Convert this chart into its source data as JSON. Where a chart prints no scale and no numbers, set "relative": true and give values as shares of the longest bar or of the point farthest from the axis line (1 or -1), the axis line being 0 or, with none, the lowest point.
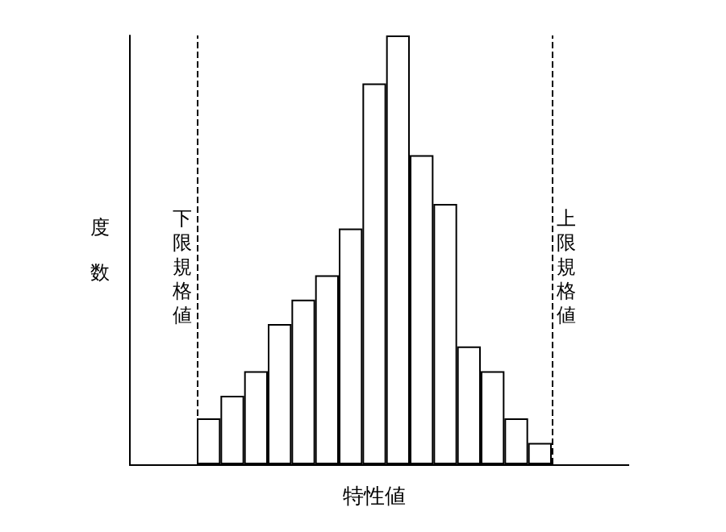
{
  "chart_data": {
    "type": "bar",
    "xlabel": "特性値",
    "ylabel": "度数",
    "relative": true,
    "color": "#ffffff",
    "grid": false,
    "categories": [
      null,
      null,
      null,
      null,
      null,
      null,
      null,
      null,
      null,
      null,
      null,
      null,
      null,
      null,
      null
    ],
    "values": [
      0.107,
      0.16,
      0.217,
      0.327,
      0.384,
      0.441,
      0.55,
      0.888,
      1,
      0.721,
      0.607,
      0.275,
      0.217,
      0.107,
      0.05
    ],
    "ref_lines": [
      {
        "axis": "x",
        "label": "下限規格値",
        "line_style": "dashed"
      },
      {
        "axis": "x",
        "label": "上限規格値",
        "line_style": "dashed"
      }
    ]
  }
}
